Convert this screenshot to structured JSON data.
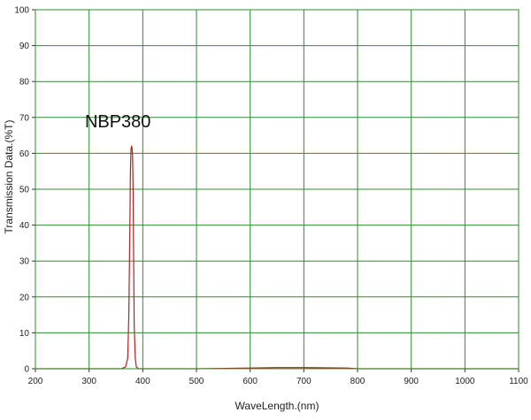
{
  "chart_data": {
    "type": "line",
    "title": "",
    "xlabel": "WaveLength.(nm)",
    "ylabel": "Transmission Data.(%T)",
    "xlim": [
      200,
      1100
    ],
    "ylim": [
      0,
      100
    ],
    "xticks": [
      200,
      300,
      400,
      500,
      600,
      700,
      800,
      900,
      1000,
      1100
    ],
    "yticks": [
      0,
      10,
      20,
      30,
      40,
      50,
      60,
      70,
      80,
      90,
      100
    ],
    "grid": true,
    "annotations": [
      {
        "text": "NBP380",
        "x": 380,
        "y": 68
      }
    ],
    "colors": {
      "grid": "#2e8b2e",
      "frame": "#2e8b2e",
      "series": "#b22222",
      "plot_background": "#ffffff"
    },
    "series": [
      {
        "x": [
          200,
          300,
          360,
          368,
          372,
          374,
          376,
          377,
          378,
          379,
          380,
          381,
          382,
          383,
          384,
          386,
          388,
          392,
          400,
          500,
          600,
          650,
          700,
          780,
          800,
          900,
          1000,
          1100
        ],
        "y": [
          0,
          0,
          0,
          0.5,
          3,
          15,
          40,
          55,
          61,
          62,
          61.5,
          59,
          50,
          30,
          12,
          3,
          0.5,
          0,
          0,
          0,
          0.2,
          0.3,
          0.3,
          0.2,
          0,
          0,
          0,
          0
        ]
      }
    ]
  }
}
